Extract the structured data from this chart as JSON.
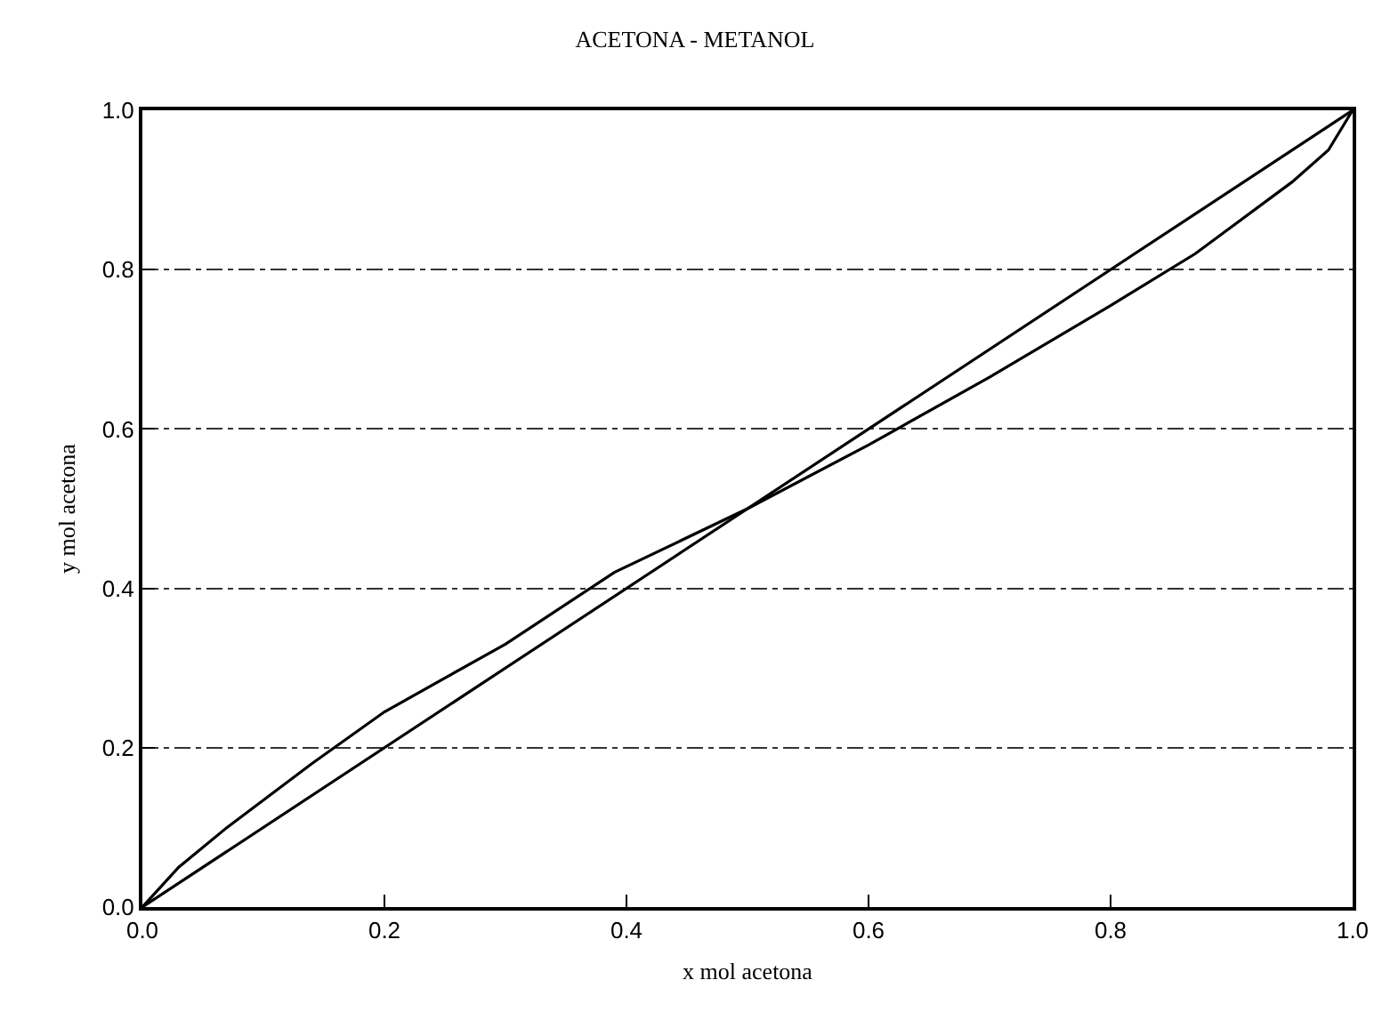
{
  "chart_data": {
    "type": "line",
    "title": "ACETONA - METANOL",
    "xlabel": "x mol acetona",
    "ylabel": "y mol acetona",
    "xlim": [
      0,
      1
    ],
    "ylim": [
      0,
      1
    ],
    "xticks": [
      "0.0",
      0.2,
      0.4,
      0.6,
      0.8,
      "1.0"
    ],
    "yticks": [
      "0.0",
      0.2,
      0.4,
      0.6,
      0.8,
      "1.0"
    ],
    "grid": "y",
    "marker": "none",
    "line_style": "solid",
    "series": [
      {
        "color": "#000000",
        "x": [
          0,
          1
        ],
        "values": [
          0,
          1
        ]
      },
      {
        "color": "#000000",
        "x": [
          0,
          0.03,
          0.07,
          0.14,
          0.2,
          0.3,
          0.39,
          0.5,
          0.6,
          0.7,
          0.8,
          0.87,
          0.95,
          0.98,
          1
        ],
        "values": [
          0,
          0.05,
          0.1,
          0.18,
          0.245,
          0.33,
          0.42,
          0.5,
          0.58,
          0.665,
          0.755,
          0.82,
          0.91,
          0.95,
          1
        ]
      }
    ]
  }
}
